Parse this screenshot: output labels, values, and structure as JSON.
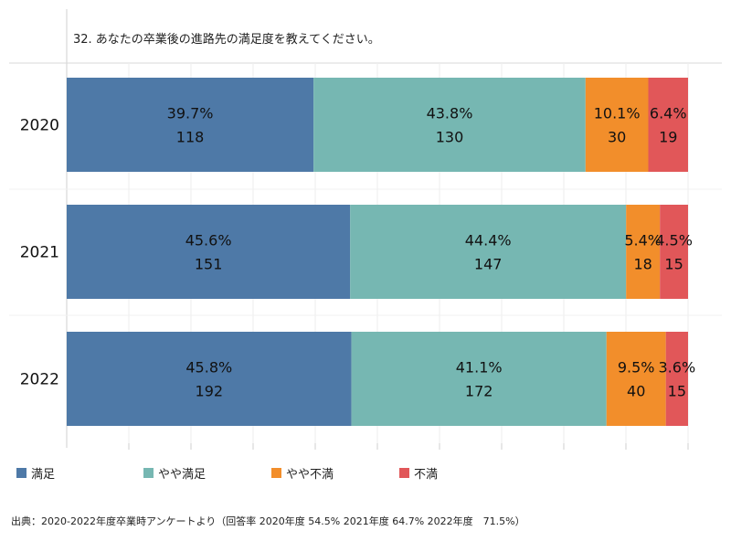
{
  "chart_data": {
    "type": "bar",
    "orientation": "horizontal",
    "stacked": true,
    "title": "32. あなたの卒業後の進路先の満足度を教えてください。",
    "categories": [
      "2020",
      "2021",
      "2022"
    ],
    "series": [
      {
        "name": "満足",
        "color": "#4e79a7",
        "percent_labels": [
          "39.7%",
          "45.6%",
          "45.8%"
        ],
        "values": [
          118,
          151,
          192
        ]
      },
      {
        "name": "やや満足",
        "color": "#76b7b2",
        "percent_labels": [
          "43.8%",
          "44.4%",
          "41.1%"
        ],
        "values": [
          130,
          147,
          172
        ]
      },
      {
        "name": "やや不満",
        "color": "#f28e2b",
        "percent_labels": [
          "10.1%",
          "5.4%",
          "9.5%"
        ],
        "values": [
          30,
          18,
          40
        ]
      },
      {
        "name": "不満",
        "color": "#e15759",
        "percent_labels": [
          "6.4%",
          "4.5%",
          "3.6%"
        ],
        "values": [
          19,
          15,
          15
        ]
      }
    ],
    "grid": true,
    "legend_position": "bottom"
  },
  "source": "出典：2020-2022年度卒業時アンケートより（回答率 2020年度 54.5% 2021年度 64.7% 2022年度　71.5%）"
}
